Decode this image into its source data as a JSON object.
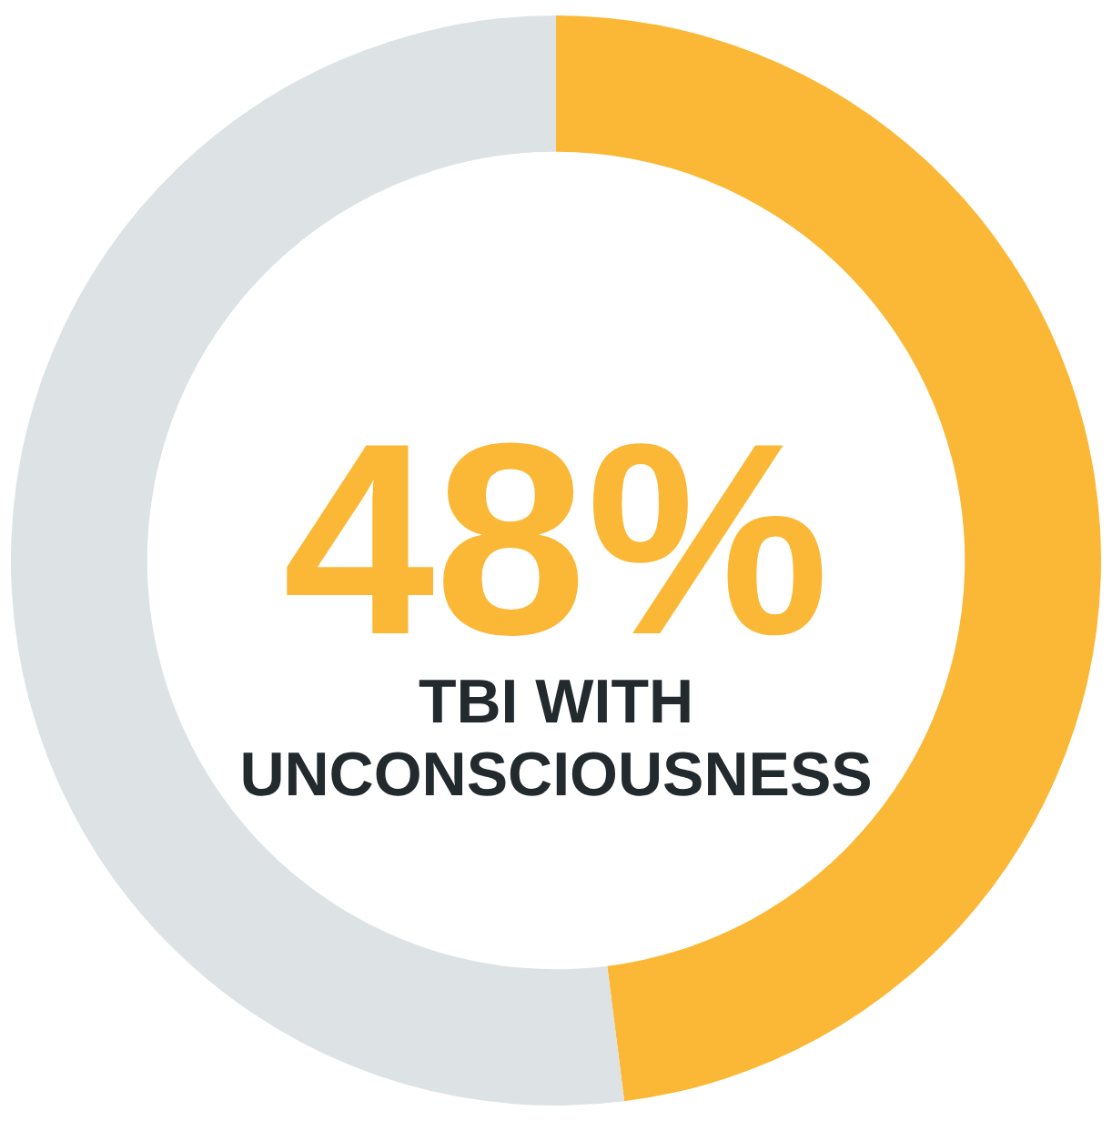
{
  "chart_data": {
    "type": "donut",
    "categories": [
      "TBI WITH UNCONSCIOUSNESS",
      null
    ],
    "values": [
      48,
      52
    ],
    "colors": [
      "#fbb836",
      "#dde3e5"
    ],
    "value_labels": [
      "48%",
      null
    ]
  }
}
